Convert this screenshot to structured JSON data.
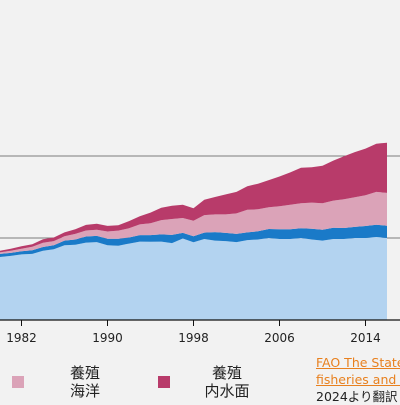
{
  "chart_data": {
    "type": "area",
    "stacked": true,
    "x": [
      1980,
      1981,
      1982,
      1983,
      1984,
      1985,
      1986,
      1987,
      1988,
      1989,
      1990,
      1991,
      1992,
      1993,
      1994,
      1995,
      1996,
      1997,
      1998,
      1999,
      2000,
      2001,
      2002,
      2003,
      2004,
      2005,
      2006,
      2007,
      2008,
      2009,
      2010,
      2011,
      2012,
      2013,
      2014,
      2015,
      2016
    ],
    "x_ticks": [
      "1982",
      "1990",
      "1998",
      "2006",
      "2014"
    ],
    "y_gridlines": [
      80,
      160
    ],
    "ylim": [
      0,
      190
    ],
    "grid": "horizontal",
    "series": [
      {
        "key": "capture_marine",
        "color": "#b3d3f0",
        "values": [
          61.5,
          62.5,
          64,
          64.5,
          67.5,
          69,
          73,
          73.5,
          75.5,
          76,
          73,
          72.5,
          74.5,
          76.5,
          76.3,
          76.5,
          75,
          79.5,
          75.8,
          79,
          77.5,
          77,
          76,
          78,
          78.5,
          80,
          79,
          79,
          80,
          78.5,
          77.5,
          79,
          79,
          80,
          80,
          81,
          80
        ]
      },
      {
        "key": "capture_inland",
        "color": "#1a7ac8",
        "values": [
          3,
          3,
          3,
          3.5,
          3.7,
          4,
          4.5,
          5,
          6,
          6,
          6.3,
          6.7,
          6,
          6.3,
          6.5,
          7,
          8,
          5.5,
          6,
          6.3,
          8.3,
          8,
          8,
          7.5,
          8,
          8.8,
          9.5,
          9.5,
          9.5,
          10.5,
          10.5,
          11,
          10.8,
          10.8,
          11.7,
          12,
          12
        ]
      },
      {
        "key": "aquaculture_marine",
        "color": "#dba3b8",
        "values": [
          1.5,
          2,
          2.5,
          3.5,
          4.2,
          4,
          4.3,
          5.5,
          5.8,
          6,
          7,
          8,
          9,
          10.5,
          11.5,
          14,
          15.5,
          14.5,
          15,
          17,
          17.2,
          18,
          20,
          22,
          21.5,
          21.2,
          22.5,
          24,
          24.5,
          25.5,
          26,
          26.5,
          28,
          29,
          30,
          32,
          32
        ]
      },
      {
        "key": "aquaculture_inland",
        "color": "#b83b6a",
        "values": [
          1.5,
          2,
          2.5,
          2.5,
          3.3,
          3.5,
          3.7,
          4.5,
          5.5,
          6,
          5.5,
          5.3,
          7,
          8,
          10.5,
          12,
          13,
          13,
          12.2,
          15,
          17,
          19.5,
          21,
          23,
          25,
          26.5,
          29,
          31.5,
          34.5,
          34.5,
          36.5,
          39,
          42,
          44,
          45.5,
          47,
          49
        ]
      }
    ]
  },
  "legend": [
    {
      "key": "aquaculture_marine",
      "line1": "養殖",
      "line2": "海洋",
      "color": "#dba3b8"
    },
    {
      "key": "aquaculture_inland",
      "line1": "養殖",
      "line2": "内水面",
      "color": "#b83b6a"
    }
  ],
  "source": {
    "line1": "FAO The State of World",
    "line2": "fisheries and aquaculture",
    "line3": "2024より翻訳"
  }
}
